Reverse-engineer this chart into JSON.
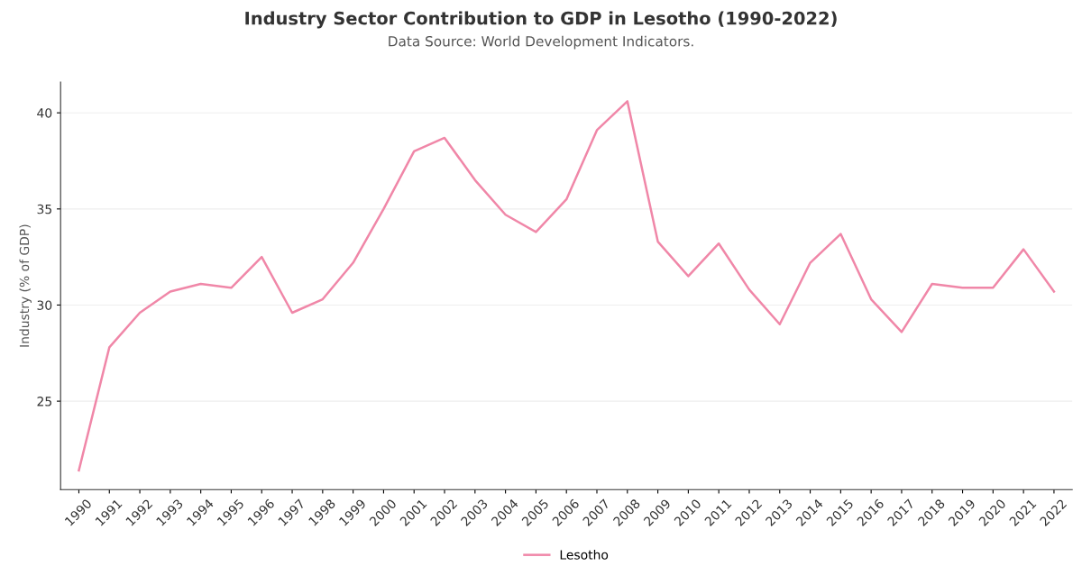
{
  "chart_data": {
    "type": "line",
    "title": "Industry Sector Contribution to GDP in Lesotho (1990-2022)",
    "subtitle": "Data Source: World Development Indicators.",
    "ylabel": "Industry (% of GDP)",
    "categories": [
      "1990",
      "1991",
      "1992",
      "1993",
      "1994",
      "1995",
      "1996",
      "1997",
      "1998",
      "1999",
      "2000",
      "2001",
      "2002",
      "2003",
      "2004",
      "2005",
      "2006",
      "2007",
      "2008",
      "2009",
      "2010",
      "2011",
      "2012",
      "2013",
      "2014",
      "2015",
      "2016",
      "2017",
      "2018",
      "2019",
      "2020",
      "2021",
      "2022"
    ],
    "series": [
      {
        "name": "Lesotho",
        "color": "#f087a8",
        "values": [
          21.4,
          27.8,
          29.6,
          30.7,
          31.1,
          30.9,
          32.5,
          29.6,
          30.3,
          32.2,
          35.0,
          38.0,
          38.7,
          36.5,
          34.7,
          33.8,
          35.5,
          39.1,
          40.6,
          33.3,
          31.5,
          33.2,
          30.8,
          29.0,
          32.2,
          33.7,
          30.3,
          28.6,
          31.1,
          30.9,
          30.9,
          32.9,
          30.7
        ]
      }
    ],
    "ylim": [
      20.4,
      41.6
    ],
    "yticks": [
      25,
      30,
      35,
      40
    ],
    "grid": "y",
    "legend": "bottom",
    "marker": "none",
    "line_style": "solid"
  }
}
